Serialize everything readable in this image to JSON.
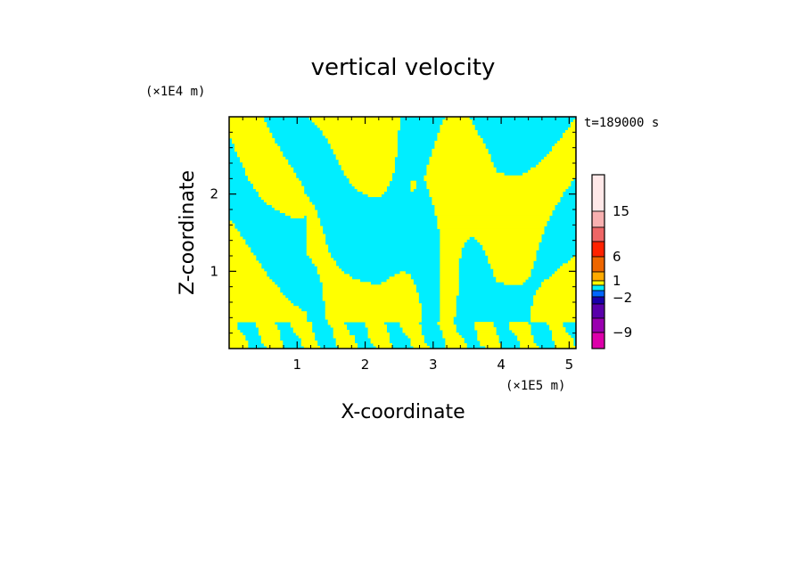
{
  "chart_data": {
    "type": "heatmap",
    "title": "vertical velocity",
    "xlabel": "X-coordinate",
    "ylabel": "Z-coordinate",
    "x_scale_label": "(×1E5 m)",
    "y_scale_label": "(×1E4 m)",
    "time_label": "t=189000 s",
    "x_ticks": [
      "1",
      "2",
      "3",
      "4",
      "5"
    ],
    "x_tick_values": [
      1,
      2,
      3,
      4,
      5
    ],
    "y_ticks": [
      "1",
      "2"
    ],
    "y_tick_values": [
      1,
      2
    ],
    "xlim": [
      0,
      5.1
    ],
    "ylim": [
      0,
      3.0
    ],
    "field_colors": {
      "positive": "#ffff00",
      "negative": "#00eeff"
    },
    "colorbar": {
      "labels": [
        "15",
        "6",
        "1",
        "−2",
        "−9"
      ],
      "label_values": [
        15,
        6,
        1,
        -2,
        -9
      ],
      "colors": [
        "#ffe8e8",
        "#f8b0b0",
        "#ee6666",
        "#ff2200",
        "#ee6600",
        "#ffaa00",
        "#ffff00",
        "#00eeff",
        "#0066ff",
        "#1a00aa",
        "#5a00aa",
        "#9a00b0",
        "#dd00aa"
      ]
    }
  }
}
